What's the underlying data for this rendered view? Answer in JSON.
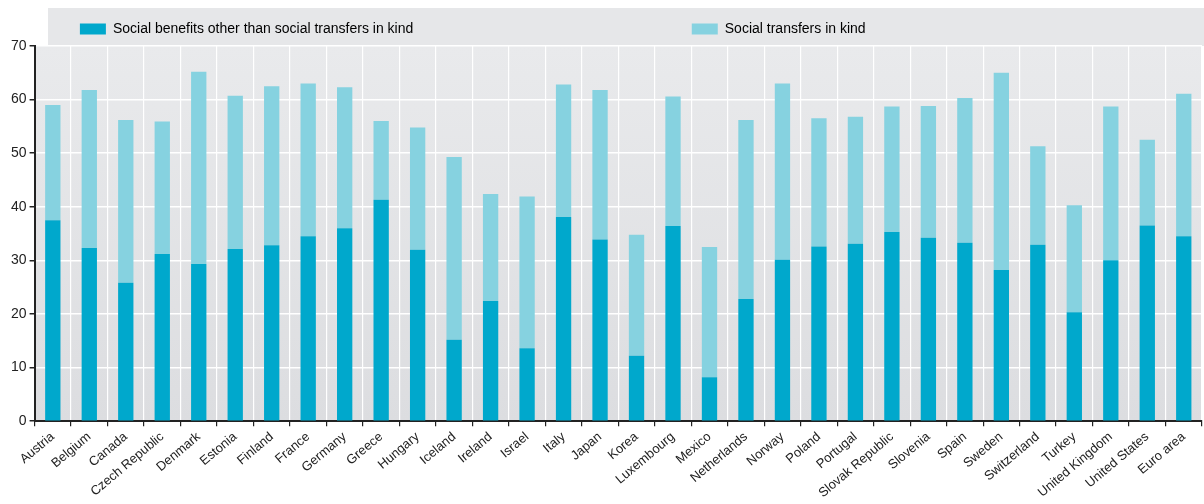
{
  "chart_data": {
    "type": "bar",
    "stacked": true,
    "legend": "top",
    "grid": true,
    "categories": [
      "Austria",
      "Belgium",
      "Canada",
      "Czech Republic",
      "Denmark",
      "Estonia",
      "Finland",
      "France",
      "Germany",
      "Greece",
      "Hungary",
      "Iceland",
      "Ireland",
      "Israel",
      "Italy",
      "Japan",
      "Korea",
      "Luxembourg",
      "Mexico",
      "Netherlands",
      "Norway",
      "Poland",
      "Portugal",
      "Slovak Republic",
      "Slovenia",
      "Spain",
      "Sweden",
      "Switzerland",
      "Turkey",
      "United Kingdom",
      "United States",
      "Euro area"
    ],
    "ylim": [
      0,
      70
    ],
    "yticks": [
      0,
      10,
      20,
      30,
      40,
      50,
      60,
      70
    ],
    "series": [
      {
        "name": "Social benefits other than social transfers in kind",
        "color": "#00a8cc",
        "values": [
          37.5,
          32.3,
          25.8,
          31.2,
          29.3,
          32.1,
          32.8,
          34.5,
          36,
          41.3,
          32,
          15.2,
          22.4,
          13.6,
          38.1,
          33.9,
          12.2,
          36.4,
          8.2,
          22.8,
          30.1,
          32.6,
          33.1,
          35.3,
          34.2,
          33.3,
          28.2,
          32.9,
          20.3,
          30,
          36.5,
          34.5
        ]
      },
      {
        "name": "Social transfers in kind",
        "color": "#86d2e0",
        "values": [
          21.5,
          29.5,
          30.4,
          24.7,
          35.9,
          28.6,
          29.7,
          28.5,
          26.3,
          14.7,
          22.8,
          34.1,
          20,
          28.3,
          24.7,
          27.9,
          22.6,
          24.2,
          24.3,
          33.4,
          32.9,
          23.9,
          23.7,
          23.4,
          24.6,
          27,
          36.8,
          18.4,
          20,
          28.7,
          16,
          26.6
        ]
      }
    ]
  }
}
